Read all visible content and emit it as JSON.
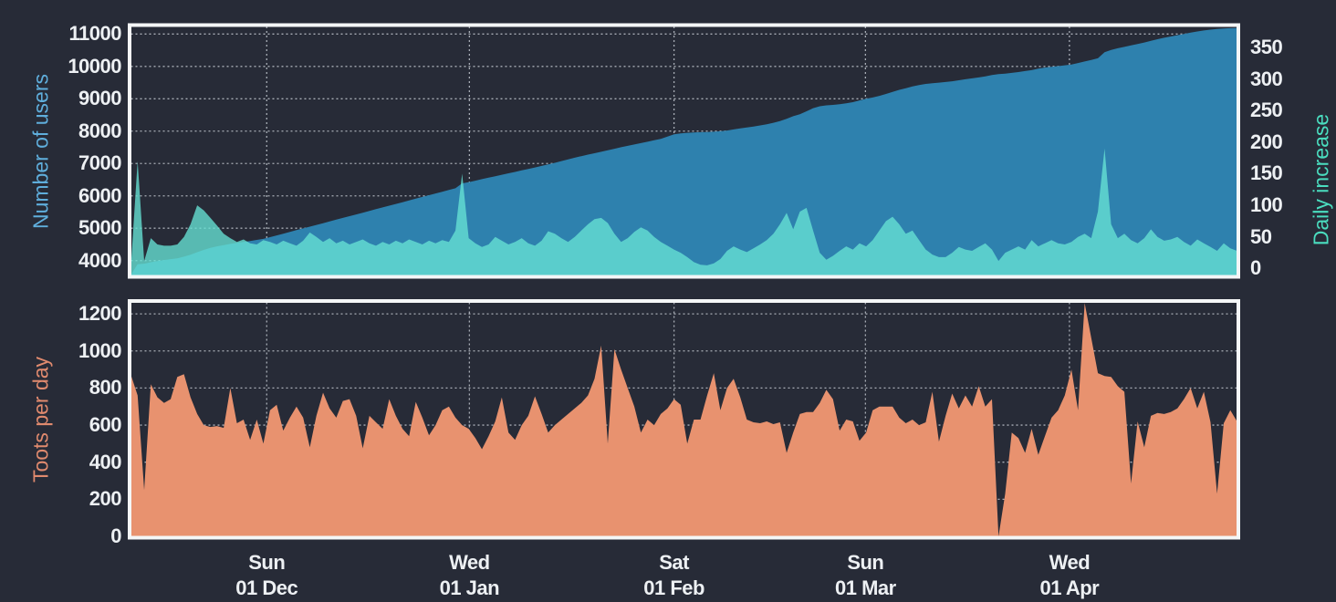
{
  "colors": {
    "background": "#272B37",
    "plot_background": "#272B37",
    "border": "#F4F6F7",
    "grid": "#C9CED6",
    "tick_text": "#EDF0F3",
    "users_area": "#2E81AE",
    "increase_area": "rgba(103,227,213,0.78)",
    "toots_area": "#E8926F",
    "users_title": "#5FAEDC",
    "increase_title": "#4ADDBF",
    "toots_title": "#E08A6E"
  },
  "x_axis": {
    "n_points": 168,
    "ticks": [
      {
        "weekday": "Sun",
        "date": "01 Dec",
        "index": 20.5
      },
      {
        "weekday": "Wed",
        "date": "01 Jan",
        "index": 51.1
      },
      {
        "weekday": "Sat",
        "date": "01 Feb",
        "index": 82.0
      },
      {
        "weekday": "Sun",
        "date": "01 Mar",
        "index": 110.9
      },
      {
        "weekday": "Wed",
        "date": "01 Apr",
        "index": 141.7
      }
    ]
  },
  "chart_data": [
    {
      "type": "area",
      "panel": "top",
      "left_axis": {
        "title": "Number of users",
        "ticks": [
          4000,
          5000,
          6000,
          7000,
          8000,
          9000,
          10000,
          11000
        ],
        "min": 3540,
        "max": 11235
      },
      "right_axis": {
        "title": "Daily increase",
        "ticks": [
          0,
          50,
          100,
          150,
          200,
          250,
          300,
          350
        ],
        "min": -11,
        "max": 383
      },
      "series": [
        {
          "name": "Number of users",
          "axis": "left",
          "color": "#2E81AE",
          "values": [
            3560,
            3890,
            3905,
            3950,
            3985,
            4015,
            4045,
            4070,
            4120,
            4180,
            4260,
            4330,
            4390,
            4440,
            4480,
            4515,
            4545,
            4575,
            4605,
            4640,
            4670,
            4724,
            4778,
            4832,
            4886,
            4940,
            4994,
            5048,
            5102,
            5156,
            5210,
            5264,
            5318,
            5372,
            5426,
            5480,
            5534,
            5588,
            5642,
            5696,
            5750,
            5804,
            5858,
            5912,
            5966,
            6020,
            6074,
            6128,
            6182,
            6236,
            6386,
            6420,
            6468,
            6516,
            6562,
            6608,
            6652,
            6696,
            6740,
            6786,
            6832,
            6878,
            6924,
            6972,
            7022,
            7074,
            7128,
            7180,
            7228,
            7274,
            7318,
            7362,
            7408,
            7456,
            7502,
            7546,
            7588,
            7630,
            7672,
            7716,
            7762,
            7830,
            7900,
            7928,
            7948,
            7960,
            7968,
            7974,
            7982,
            7996,
            8020,
            8052,
            8086,
            8116,
            8144,
            8176,
            8214,
            8258,
            8312,
            8380,
            8462,
            8524,
            8614,
            8710,
            8770,
            8796,
            8812,
            8834,
            8862,
            8896,
            8948,
            9000,
            9040,
            9090,
            9150,
            9215,
            9275,
            9325,
            9380,
            9425,
            9458,
            9482,
            9500,
            9518,
            9542,
            9572,
            9602,
            9630,
            9658,
            9692,
            9732,
            9762,
            9775,
            9800,
            9826,
            9856,
            9886,
            9930,
            9965,
            9990,
            10010,
            10035,
            10060,
            10105,
            10152,
            10200,
            10250,
            10440,
            10510,
            10560,
            10605,
            10650,
            10695,
            10740,
            10790,
            10840,
            10885,
            10925,
            10965,
            11005,
            11045,
            11080,
            11110,
            11135,
            11155,
            11170,
            11182,
            11190
          ]
        },
        {
          "name": "Daily increase",
          "axis": "right",
          "color": "rgba(103,227,213,0.78)",
          "values": [
            5,
            170,
            12,
            48,
            38,
            36,
            36,
            38,
            50,
            70,
            100,
            92,
            80,
            68,
            55,
            48,
            42,
            46,
            40,
            38,
            45,
            42,
            38,
            44,
            40,
            36,
            44,
            57,
            50,
            42,
            48,
            40,
            44,
            38,
            42,
            46,
            40,
            36,
            42,
            38,
            44,
            40,
            46,
            42,
            38,
            44,
            40,
            45,
            42,
            60,
            150,
            48,
            40,
            34,
            38,
            50,
            44,
            38,
            42,
            48,
            40,
            36,
            44,
            59,
            55,
            48,
            42,
            50,
            60,
            70,
            78,
            80,
            72,
            55,
            42,
            48,
            58,
            65,
            60,
            50,
            42,
            36,
            30,
            25,
            18,
            10,
            6,
            5,
            8,
            15,
            28,
            35,
            30,
            26,
            32,
            38,
            45,
            55,
            70,
            88,
            62,
            90,
            96,
            60,
            25,
            14,
            20,
            28,
            35,
            30,
            40,
            35,
            45,
            60,
            75,
            82,
            70,
            55,
            60,
            45,
            30,
            22,
            18,
            18,
            25,
            34,
            30,
            28,
            34,
            40,
            30,
            12,
            25,
            30,
            35,
            30,
            45,
            35,
            40,
            45,
            40,
            38,
            42,
            50,
            55,
            48,
            90,
            190,
            70,
            48,
            55,
            45,
            40,
            48,
            62,
            50,
            44,
            46,
            50,
            42,
            36,
            46,
            40,
            34,
            28,
            40,
            32,
            28
          ]
        }
      ]
    },
    {
      "type": "area",
      "panel": "bottom",
      "left_axis": {
        "title": "Toots per day",
        "ticks": [
          0,
          200,
          400,
          600,
          800,
          1000,
          1200
        ],
        "min": 0,
        "max": 1262
      },
      "series": [
        {
          "name": "Toots per day",
          "axis": "left",
          "color": "#E8926F",
          "values": [
            870,
            760,
            250,
            820,
            750,
            720,
            740,
            860,
            875,
            750,
            660,
            600,
            590,
            595,
            585,
            800,
            610,
            630,
            520,
            630,
            500,
            680,
            710,
            570,
            640,
            700,
            640,
            480,
            650,
            775,
            690,
            640,
            730,
            740,
            650,
            475,
            650,
            615,
            580,
            740,
            650,
            580,
            540,
            725,
            640,
            545,
            600,
            680,
            700,
            640,
            600,
            580,
            530,
            470,
            540,
            620,
            750,
            560,
            520,
            600,
            650,
            755,
            660,
            560,
            600,
            630,
            660,
            690,
            720,
            760,
            850,
            1030,
            500,
            1010,
            900,
            800,
            700,
            560,
            630,
            600,
            660,
            690,
            740,
            710,
            500,
            630,
            630,
            760,
            880,
            680,
            800,
            850,
            750,
            630,
            615,
            610,
            620,
            605,
            615,
            450,
            560,
            660,
            670,
            670,
            720,
            790,
            740,
            570,
            630,
            620,
            515,
            560,
            680,
            700,
            700,
            700,
            640,
            610,
            630,
            600,
            615,
            780,
            510,
            650,
            770,
            690,
            760,
            700,
            810,
            700,
            740,
            0,
            230,
            560,
            530,
            450,
            580,
            440,
            540,
            640,
            680,
            760,
            900,
            680,
            1258,
            1070,
            880,
            865,
            860,
            810,
            780,
            285,
            620,
            480,
            650,
            665,
            660,
            670,
            690,
            740,
            800,
            690,
            780,
            615,
            230,
            610,
            680,
            620
          ]
        }
      ]
    }
  ]
}
